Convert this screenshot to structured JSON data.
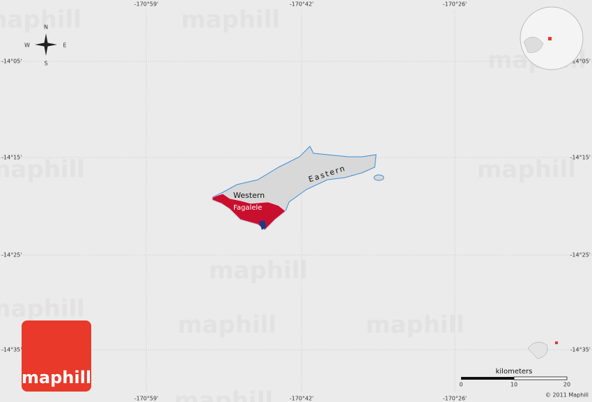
{
  "map": {
    "longitude_labels": [
      "-170°59'",
      "-170°42'",
      "-170°26'"
    ],
    "latitude_labels": [
      "-14°05'",
      "-14°15'",
      "-14°25'",
      "-14°35'"
    ],
    "compass": {
      "n": "N",
      "s": "S",
      "e": "E",
      "w": "W"
    },
    "regions": [
      "Western",
      "Eastern"
    ],
    "place": "Fagalele",
    "scale": {
      "unit": "kilometers",
      "ticks": [
        0,
        10,
        20
      ]
    },
    "copyright": "© 2011 Maphill",
    "logo": "maphill",
    "watermark": "maphill"
  }
}
